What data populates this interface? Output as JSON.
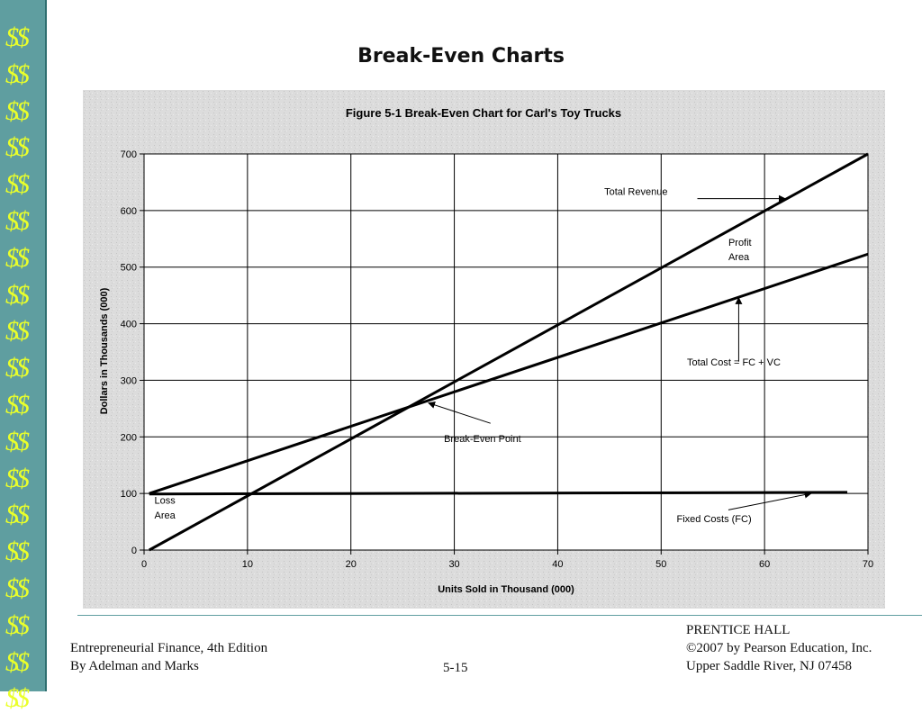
{
  "slide": {
    "title": "Break-Even Charts",
    "sidebar_glyph": "$$",
    "sidebar_count": 19
  },
  "footer": {
    "left_line1": "Entrepreneurial Finance, 4th Edition",
    "left_line2": "By Adelman and Marks",
    "page": "5-15",
    "right_line1": "PRENTICE HALL",
    "right_line2": "©2007 by Pearson Education, Inc.",
    "right_line3": "Upper Saddle River, NJ 07458"
  },
  "colors": {
    "sidebar": "#5f9ea0",
    "sidebar_text": "#eaff2a",
    "chart_background": "#dddddd",
    "plot_background": "#ffffff",
    "line": "#000000"
  },
  "chart_data": {
    "type": "line",
    "title": "Figure 5-1 Break-Even Chart for Carl's Toy Trucks",
    "xlabel": "Units Sold in Thousand (000)",
    "ylabel": "Dollars in Thousands (000)",
    "xlim": [
      0,
      70
    ],
    "ylim": [
      0,
      700
    ],
    "xticks": [
      0,
      10,
      20,
      30,
      40,
      50,
      60,
      70
    ],
    "yticks": [
      0,
      100,
      200,
      300,
      400,
      500,
      600,
      700
    ],
    "grid": true,
    "legend": "none",
    "series": [
      {
        "name": "Total Revenue",
        "x": [
          0.5,
          70
        ],
        "y": [
          0,
          700
        ]
      },
      {
        "name": "Total Cost = FC + VC",
        "x": [
          0.5,
          70
        ],
        "y": [
          100,
          523
        ]
      },
      {
        "name": "Fixed Costs (FC)",
        "x": [
          0.5,
          68
        ],
        "y": [
          99,
          102
        ]
      }
    ],
    "annotations": [
      {
        "text": "Total Revenue",
        "x": 44.5,
        "y": 628,
        "arrow_from": [
          53.5,
          621
        ],
        "arrow_to": [
          62,
          621
        ]
      },
      {
        "text": "Total Cost = FC + VC",
        "x": 52.5,
        "y": 326,
        "arrow_from": [
          57.5,
          333
        ],
        "arrow_to": [
          57.5,
          446
        ]
      },
      {
        "text": "Break-Even Point",
        "x": 29,
        "y": 191,
        "arrow_from": [
          33.5,
          224
        ],
        "arrow_to": [
          27.5,
          260
        ]
      },
      {
        "text": "Fixed Costs (FC)",
        "x": 51.5,
        "y": 49,
        "arrow_from": [
          56.5,
          71
        ],
        "arrow_to": [
          64.5,
          100
        ]
      },
      {
        "text": "Profit",
        "x": 56.5,
        "y": 538
      },
      {
        "text": "Area",
        "x": 56.5,
        "y": 512
      },
      {
        "text": "Loss",
        "x": 1,
        "y": 82
      },
      {
        "text": "Area",
        "x": 1,
        "y": 56
      }
    ]
  }
}
